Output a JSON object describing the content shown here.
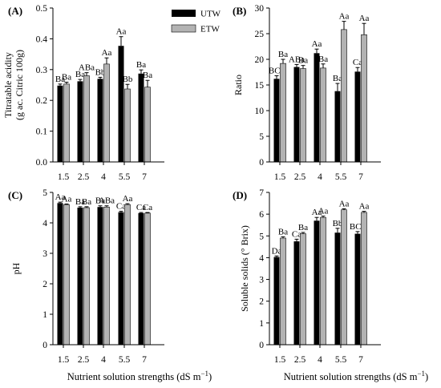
{
  "figure": {
    "xlabel": "Nutrient solution strengths  (dS m",
    "xlabel_sup": "−1",
    "xlabel_close": ")"
  },
  "legend": {
    "utw": "UTW",
    "etw": "ETW"
  },
  "colors": {
    "utw": "#000000",
    "etw": "#b3b3b3",
    "axis": "#000000"
  },
  "chart_data": [
    {
      "panel": "(A)",
      "type": "bar",
      "ylabel_lines": [
        "Titratable acidity",
        "(g ac. Citric 100g)"
      ],
      "categories": [
        "1.5",
        "2.5",
        "4",
        "5.5",
        "7"
      ],
      "ylim": [
        0,
        0.5
      ],
      "yticks": [
        "0.0",
        "0.1",
        "0.2",
        "0.3",
        "0.4",
        "0.5"
      ],
      "ytick_values": [
        0,
        0.1,
        0.2,
        0.3,
        0.4,
        0.5
      ],
      "series": [
        {
          "name": "UTW",
          "values": [
            0.248,
            0.262,
            0.27,
            0.377,
            0.287
          ],
          "errors": [
            0.005,
            0.006,
            0.005,
            0.03,
            0.012
          ],
          "labels": [
            "Ba",
            "Ba",
            "Bb",
            "Aa",
            "Ba"
          ]
        },
        {
          "name": "ETW",
          "values": [
            0.253,
            0.28,
            0.318,
            0.237,
            0.243
          ],
          "errors": [
            0.006,
            0.01,
            0.02,
            0.015,
            0.022
          ],
          "labels": [
            "Ba",
            "ABa",
            "Aa",
            "Bb",
            "Ba"
          ]
        }
      ]
    },
    {
      "panel": "(B)",
      "type": "bar",
      "ylabel_lines": [
        "Ratio"
      ],
      "categories": [
        "1.5",
        "2.5",
        "4",
        "5.5",
        "7"
      ],
      "ylim": [
        0,
        30
      ],
      "yticks": [
        "0",
        "5",
        "10",
        "15",
        "20",
        "25",
        "30"
      ],
      "ytick_values": [
        0,
        5,
        10,
        15,
        20,
        25,
        30
      ],
      "series": [
        {
          "name": "UTW",
          "values": [
            16.2,
            18.5,
            21.2,
            13.8,
            17.6
          ],
          "errors": [
            0.6,
            0.5,
            0.8,
            1.5,
            0.8
          ],
          "labels": [
            "BCb",
            "ABa",
            "Aa",
            "Ba",
            "Ca"
          ]
        },
        {
          "name": "ETW",
          "values": [
            19.2,
            18.2,
            18.3,
            25.8,
            24.8
          ],
          "errors": [
            0.8,
            0.6,
            0.8,
            1.6,
            2.2
          ],
          "labels": [
            "Ba",
            "Ba",
            "Ba",
            "Aa",
            "Aa"
          ]
        }
      ]
    },
    {
      "panel": "(C)",
      "type": "bar",
      "ylabel_lines": [
        "pH"
      ],
      "categories": [
        "1.5",
        "2.5",
        "4",
        "5.5",
        "7"
      ],
      "ylim": [
        0,
        5
      ],
      "yticks": [
        "0",
        "1",
        "2",
        "3",
        "4",
        "5"
      ],
      "ytick_values": [
        0,
        1,
        2,
        3,
        4,
        5
      ],
      "series": [
        {
          "name": "UTW",
          "values": [
            4.65,
            4.5,
            4.52,
            4.35,
            4.32
          ],
          "errors": [
            0.03,
            0.03,
            0.04,
            0.03,
            0.02
          ],
          "labels": [
            "Aa",
            "Ba",
            "Ba",
            "Ca",
            "Ca"
          ]
        },
        {
          "name": "ETW",
          "values": [
            4.6,
            4.5,
            4.52,
            4.6,
            4.32
          ],
          "errors": [
            0.02,
            0.03,
            0.04,
            0.03,
            0.02
          ],
          "labels": [
            "Aa",
            "Ba",
            "ABa",
            "Aa",
            "Ca"
          ]
        }
      ]
    },
    {
      "panel": "(D)",
      "type": "bar",
      "ylabel_lines": [
        "Soluble solids (° Brix)"
      ],
      "categories": [
        "1.5",
        "2.5",
        "4",
        "5.5",
        "7"
      ],
      "ylim": [
        0,
        7
      ],
      "yticks": [
        "0",
        "1",
        "2",
        "3",
        "4",
        "5",
        "6",
        "7"
      ],
      "ytick_values": [
        0,
        1,
        2,
        3,
        4,
        5,
        6,
        7
      ],
      "series": [
        {
          "name": "UTW",
          "values": [
            4.03,
            4.75,
            5.7,
            5.15,
            5.1
          ],
          "errors": [
            0.05,
            0.1,
            0.15,
            0.2,
            0.1
          ],
          "labels": [
            "Da",
            "Ca",
            "Aa",
            "Bb",
            "BCb"
          ]
        },
        {
          "name": "ETW",
          "values": [
            4.9,
            5.1,
            5.85,
            6.2,
            6.08
          ],
          "errors": [
            0.06,
            0.06,
            0.06,
            0.05,
            0.05
          ],
          "labels": [
            "Ba",
            "Ba",
            "Aa",
            "Aa",
            "Aa"
          ]
        }
      ]
    }
  ]
}
